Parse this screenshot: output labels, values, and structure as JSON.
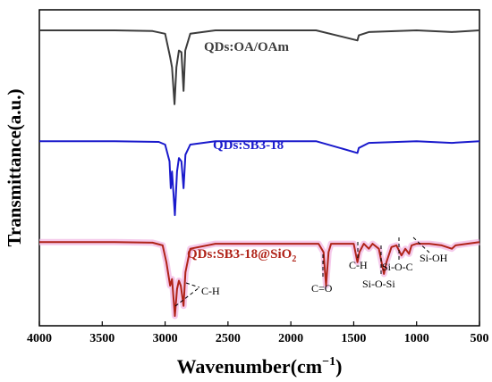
{
  "chart_data": {
    "type": "line",
    "xlabel": "Wavenumber(cm",
    "xlabel_sup": "−1",
    "xlabel_close": ")",
    "ylabel": "Transmittance(a.u.)",
    "xlim": [
      4000,
      500
    ],
    "x_reversed": true,
    "x_ticks": [
      4000,
      3500,
      3000,
      2500,
      2000,
      1500,
      1000,
      500
    ],
    "y_ticks_shown": false,
    "grid": false,
    "series": [
      {
        "name": "QDs:OA/OAm",
        "name_parts": {
          "main": "QDs:OA/OAm",
          "sub": ""
        },
        "color": "#3c3c3c",
        "points": [
          [
            4000,
            8.5
          ],
          [
            3400,
            8.5
          ],
          [
            3100,
            8.48
          ],
          [
            3000,
            8.4
          ],
          [
            2960,
            7.7
          ],
          [
            2945,
            7.4
          ],
          [
            2925,
            6.3
          ],
          [
            2910,
            7.4
          ],
          [
            2890,
            7.9
          ],
          [
            2870,
            7.85
          ],
          [
            2853,
            6.7
          ],
          [
            2840,
            7.9
          ],
          [
            2800,
            8.4
          ],
          [
            2600,
            8.5
          ],
          [
            1800,
            8.5
          ],
          [
            1470,
            8.2
          ],
          [
            1460,
            8.35
          ],
          [
            1380,
            8.45
          ],
          [
            1000,
            8.5
          ],
          [
            720,
            8.45
          ],
          [
            500,
            8.5
          ]
        ]
      },
      {
        "name": "QDs:SB3-18",
        "name_parts": {
          "main": "QDs:SB3-18",
          "sub": ""
        },
        "color": "#1a1acc",
        "points": [
          [
            4000,
            5.2
          ],
          [
            3400,
            5.2
          ],
          [
            3050,
            5.18
          ],
          [
            3000,
            5.1
          ],
          [
            2965,
            4.6
          ],
          [
            2955,
            3.8
          ],
          [
            2945,
            4.3
          ],
          [
            2922,
            3.0
          ],
          [
            2905,
            4.3
          ],
          [
            2890,
            4.7
          ],
          [
            2870,
            4.6
          ],
          [
            2853,
            3.8
          ],
          [
            2838,
            4.8
          ],
          [
            2800,
            5.1
          ],
          [
            2600,
            5.2
          ],
          [
            1800,
            5.2
          ],
          [
            1470,
            4.85
          ],
          [
            1460,
            5.0
          ],
          [
            1380,
            5.15
          ],
          [
            1000,
            5.2
          ],
          [
            720,
            5.15
          ],
          [
            500,
            5.2
          ]
        ]
      },
      {
        "name": "QDs:SB3-18@SiO",
        "name_parts": {
          "main": "QDs:SB3-18@SiO",
          "sub": "2"
        },
        "color": "#b02318",
        "halo_color": "#f3bde6",
        "points": [
          [
            4000,
            2.2
          ],
          [
            3400,
            2.2
          ],
          [
            3100,
            2.18
          ],
          [
            3020,
            2.1
          ],
          [
            2990,
            1.6
          ],
          [
            2960,
            0.9
          ],
          [
            2945,
            1.1
          ],
          [
            2922,
            0.0
          ],
          [
            2905,
            0.8
          ],
          [
            2890,
            1.05
          ],
          [
            2875,
            0.9
          ],
          [
            2853,
            0.3
          ],
          [
            2838,
            1.3
          ],
          [
            2800,
            2.0
          ],
          [
            2600,
            2.15
          ],
          [
            1780,
            2.15
          ],
          [
            1740,
            1.9
          ],
          [
            1720,
            0.9
          ],
          [
            1700,
            1.9
          ],
          [
            1680,
            2.15
          ],
          [
            1500,
            2.15
          ],
          [
            1470,
            1.6
          ],
          [
            1455,
            1.9
          ],
          [
            1420,
            2.15
          ],
          [
            1380,
            2.0
          ],
          [
            1350,
            2.15
          ],
          [
            1300,
            2.0
          ],
          [
            1260,
            1.25
          ],
          [
            1240,
            1.6
          ],
          [
            1200,
            2.05
          ],
          [
            1160,
            2.1
          ],
          [
            1120,
            1.8
          ],
          [
            1090,
            2.0
          ],
          [
            1060,
            1.85
          ],
          [
            1040,
            2.1
          ],
          [
            1000,
            2.15
          ],
          [
            900,
            2.15
          ],
          [
            800,
            2.1
          ],
          [
            720,
            2.0
          ],
          [
            690,
            2.1
          ],
          [
            500,
            2.2
          ]
        ]
      }
    ],
    "annotations": [
      {
        "text": "C-H"
      },
      {
        "text": "C=O"
      },
      {
        "text": "C-H"
      },
      {
        "text": "Si-O-C"
      },
      {
        "text": "Si-O-Si"
      },
      {
        "text": "Si-OH"
      }
    ]
  }
}
